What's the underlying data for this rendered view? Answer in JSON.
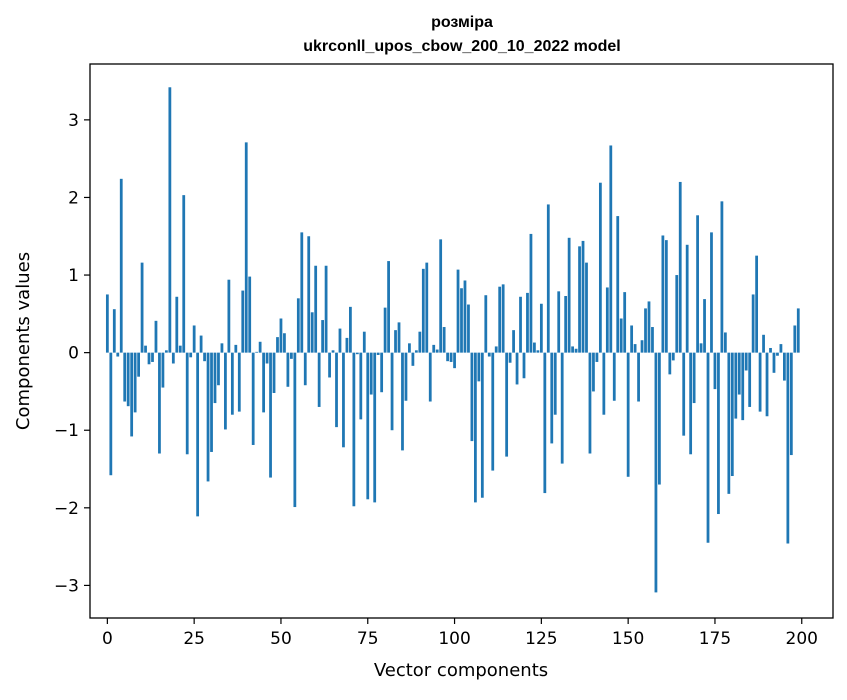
{
  "chart_data": {
    "type": "bar",
    "title": "розміра",
    "subtitle": "ukrconll_upos_cbow_200_10_2022 model",
    "xlabel": "Vector components",
    "ylabel": "Components values",
    "xlim": [
      -5,
      209
    ],
    "ylim": [
      -3.42,
      3.72
    ],
    "xticks": [
      0,
      25,
      50,
      75,
      100,
      125,
      150,
      175,
      200
    ],
    "yticks": [
      -3,
      -2,
      -1,
      0,
      1,
      2,
      3
    ],
    "xtick_labels": [
      "0",
      "25",
      "50",
      "75",
      "100",
      "125",
      "150",
      "175",
      "200"
    ],
    "ytick_labels": [
      "−3",
      "−2",
      "−1",
      "0",
      "1",
      "2",
      "3"
    ],
    "bar_color": "#1f77b4",
    "values": [
      0.75,
      -1.58,
      0.56,
      -0.05,
      2.24,
      -0.63,
      -0.69,
      -1.08,
      -0.77,
      -0.31,
      1.16,
      0.09,
      -0.15,
      -0.12,
      0.41,
      -1.3,
      -0.45,
      0.03,
      3.42,
      -0.14,
      0.72,
      0.09,
      2.03,
      -1.31,
      -0.06,
      0.35,
      -2.11,
      0.22,
      -0.11,
      -1.66,
      -1.28,
      -0.65,
      -0.42,
      0.12,
      -0.99,
      0.94,
      -0.8,
      0.1,
      -0.76,
      0.8,
      2.71,
      0.98,
      -1.19,
      0.01,
      0.14,
      -0.77,
      -0.14,
      -1.61,
      -0.52,
      0.2,
      0.44,
      0.25,
      -0.44,
      -0.08,
      -1.99,
      0.7,
      1.55,
      -0.42,
      1.5,
      0.52,
      1.12,
      -0.7,
      0.42,
      1.12,
      -0.32,
      0.03,
      -0.96,
      0.31,
      -1.22,
      0.19,
      0.59,
      -1.98,
      -0.02,
      -0.86,
      0.27,
      -1.89,
      -0.54,
      -1.93,
      -0.03,
      -0.51,
      0.58,
      1.18,
      -1.0,
      0.29,
      0.39,
      -1.26,
      -0.62,
      0.12,
      -0.17,
      0.03,
      0.27,
      1.08,
      1.16,
      -0.63,
      0.1,
      0.04,
      1.46,
      0.33,
      -0.11,
      -0.12,
      -0.2,
      1.07,
      0.83,
      0.93,
      0.62,
      -1.14,
      -1.93,
      -0.37,
      -1.87,
      0.74,
      -0.05,
      -1.52,
      0.08,
      0.85,
      0.88,
      -1.34,
      -0.13,
      0.29,
      -0.41,
      0.72,
      -0.33,
      0.77,
      1.53,
      0.13,
      0.03,
      0.63,
      -1.81,
      1.91,
      -1.17,
      -0.8,
      0.79,
      -1.43,
      0.73,
      1.48,
      0.08,
      0.05,
      1.37,
      1.44,
      1.16,
      -1.3,
      -0.5,
      -0.12,
      2.19,
      -0.8,
      0.84,
      2.67,
      -0.62,
      1.76,
      0.44,
      0.78,
      -1.6,
      0.35,
      0.11,
      -0.63,
      0.16,
      0.57,
      0.66,
      0.33,
      -3.09,
      -1.7,
      1.51,
      1.45,
      -0.28,
      -0.1,
      1.0,
      2.2,
      -1.07,
      1.39,
      -1.31,
      -0.65,
      1.77,
      0.12,
      0.69,
      -2.45,
      1.55,
      -0.47,
      -2.08,
      1.95,
      0.26,
      -1.82,
      -1.59,
      -0.85,
      -0.54,
      -0.87,
      -0.23,
      -0.7,
      0.75,
      1.25,
      -0.76,
      0.23,
      -0.82,
      0.06,
      -0.26,
      -0.04,
      0.11,
      -0.36,
      -2.46,
      -1.32,
      0.35,
      0.57
    ]
  }
}
